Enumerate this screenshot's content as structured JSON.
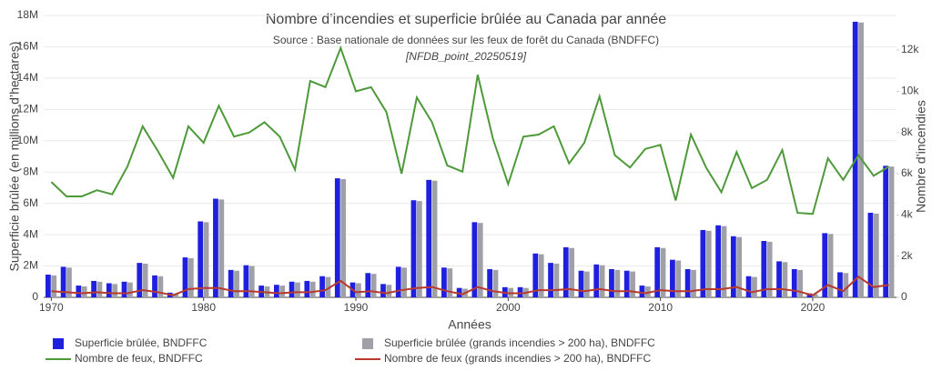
{
  "chart_data": {
    "type": "bar",
    "title": "Nombre d’incendies et superficie brûlée au Canada par année",
    "subtitle": "Source : Base nationale de données sur les feux de forêt du Canada (BNDFFC)",
    "annotation": "[NFDB_point_20250519]",
    "x_label": "Années",
    "y_label": "Superficie brûlée (en millions d’hectares)",
    "y2_label": "Nombre d’incendies",
    "grid": true,
    "x": [
      1970,
      1971,
      1972,
      1973,
      1974,
      1975,
      1976,
      1977,
      1978,
      1979,
      1980,
      1981,
      1982,
      1983,
      1984,
      1985,
      1986,
      1987,
      1988,
      1989,
      1990,
      1991,
      1992,
      1993,
      1994,
      1995,
      1996,
      1997,
      1998,
      1999,
      2000,
      2001,
      2002,
      2003,
      2004,
      2005,
      2006,
      2007,
      2008,
      2009,
      2010,
      2011,
      2012,
      2013,
      2014,
      2015,
      2016,
      2017,
      2018,
      2019,
      2020,
      2021,
      2022,
      2023,
      2024,
      2025
    ],
    "xlim": [
      1969.5,
      2025.5
    ],
    "xticks": [
      1970,
      1980,
      1990,
      2000,
      2010,
      2020
    ],
    "ylim": [
      0,
      18000000
    ],
    "yticks": [
      0,
      {
        "value": 2000000,
        "label": "2M"
      },
      {
        "value": 4000000,
        "label": "4M"
      },
      {
        "value": 6000000,
        "label": "6M"
      },
      {
        "value": 8000000,
        "label": "8M"
      },
      {
        "value": 10000000,
        "label": "10M"
      },
      {
        "value": 12000000,
        "label": "12M"
      },
      {
        "value": 14000000,
        "label": "14M"
      },
      {
        "value": 16000000,
        "label": "16M"
      },
      {
        "value": 18000000,
        "label": "18M"
      }
    ],
    "y2lim": [
      0,
      13680
    ],
    "y2ticks": [
      0,
      {
        "value": 2000,
        "label": "2k"
      },
      {
        "value": 4000,
        "label": "4k"
      },
      {
        "value": 6000,
        "label": "6k"
      },
      {
        "value": 8000,
        "label": "8k"
      },
      {
        "value": 10000,
        "label": "10k"
      },
      {
        "value": 12000,
        "label": "12k"
      }
    ],
    "series": [
      {
        "name": "Superficie brûlée, BNDFFC",
        "type": "bar",
        "axis": "y",
        "color": "#1f1fe0",
        "values": [
          1450000,
          1950000,
          750000,
          1050000,
          900000,
          1000000,
          2200000,
          1400000,
          300000,
          2550000,
          4850000,
          6300000,
          1750000,
          2050000,
          750000,
          800000,
          1000000,
          1050000,
          1350000,
          7600000,
          950000,
          1550000,
          850000,
          1950000,
          6200000,
          7500000,
          1900000,
          600000,
          4800000,
          1800000,
          650000,
          650000,
          2800000,
          2200000,
          3200000,
          1700000,
          2100000,
          1800000,
          1700000,
          750000,
          3200000,
          2400000,
          1800000,
          4300000,
          4600000,
          3900000,
          1350000,
          3600000,
          2300000,
          1800000,
          250000,
          4100000,
          1600000,
          17600000,
          5400000,
          8400000
        ]
      },
      {
        "name": "Superficie brûlée (grands incendies > 200 ha), BNDFFC",
        "type": "bar",
        "axis": "y",
        "color": "#a0a0a8",
        "values": [
          1400000,
          1900000,
          700000,
          1000000,
          850000,
          950000,
          2150000,
          1350000,
          250000,
          2500000,
          4800000,
          6250000,
          1700000,
          2000000,
          700000,
          750000,
          950000,
          1000000,
          1300000,
          7550000,
          900000,
          1500000,
          800000,
          1900000,
          6150000,
          7450000,
          1850000,
          550000,
          4750000,
          1750000,
          600000,
          600000,
          2750000,
          2150000,
          3150000,
          1650000,
          2050000,
          1750000,
          1650000,
          700000,
          3150000,
          2350000,
          1750000,
          4250000,
          4550000,
          3850000,
          1300000,
          3550000,
          2250000,
          1750000,
          200000,
          4050000,
          1550000,
          17550000,
          5350000,
          8350000
        ]
      },
      {
        "name": "Nombre de feux, BNDFFC",
        "type": "line",
        "axis": "y2",
        "color": "#4e9a3a",
        "values": [
          5600,
          4900,
          4900,
          5200,
          5000,
          6350,
          8300,
          7100,
          5800,
          8300,
          7500,
          9300,
          7800,
          8000,
          8500,
          7800,
          6200,
          10500,
          10200,
          12100,
          10000,
          10200,
          9000,
          6000,
          9700,
          8500,
          6400,
          6100,
          10800,
          7700,
          5500,
          7800,
          7900,
          8300,
          6500,
          7500,
          9750,
          6900,
          6300,
          7200,
          7400,
          4700,
          7900,
          6300,
          5100,
          7050,
          5300,
          5700,
          7150,
          4100,
          4050,
          6750,
          5700,
          6900,
          5900,
          6350
        ]
      },
      {
        "name": "Nombre de feux (grands incendies > 200 ha), BNDFFC",
        "type": "line",
        "axis": "y2",
        "color": "#b83a2e",
        "values": [
          300,
          250,
          200,
          250,
          200,
          200,
          350,
          250,
          100,
          400,
          450,
          450,
          300,
          300,
          250,
          200,
          250,
          250,
          350,
          800,
          250,
          300,
          200,
          350,
          450,
          500,
          300,
          150,
          500,
          300,
          200,
          200,
          350,
          350,
          400,
          300,
          400,
          300,
          300,
          200,
          350,
          300,
          300,
          400,
          400,
          500,
          250,
          400,
          400,
          300,
          100,
          600,
          300,
          1000,
          500,
          600
        ]
      }
    ]
  }
}
